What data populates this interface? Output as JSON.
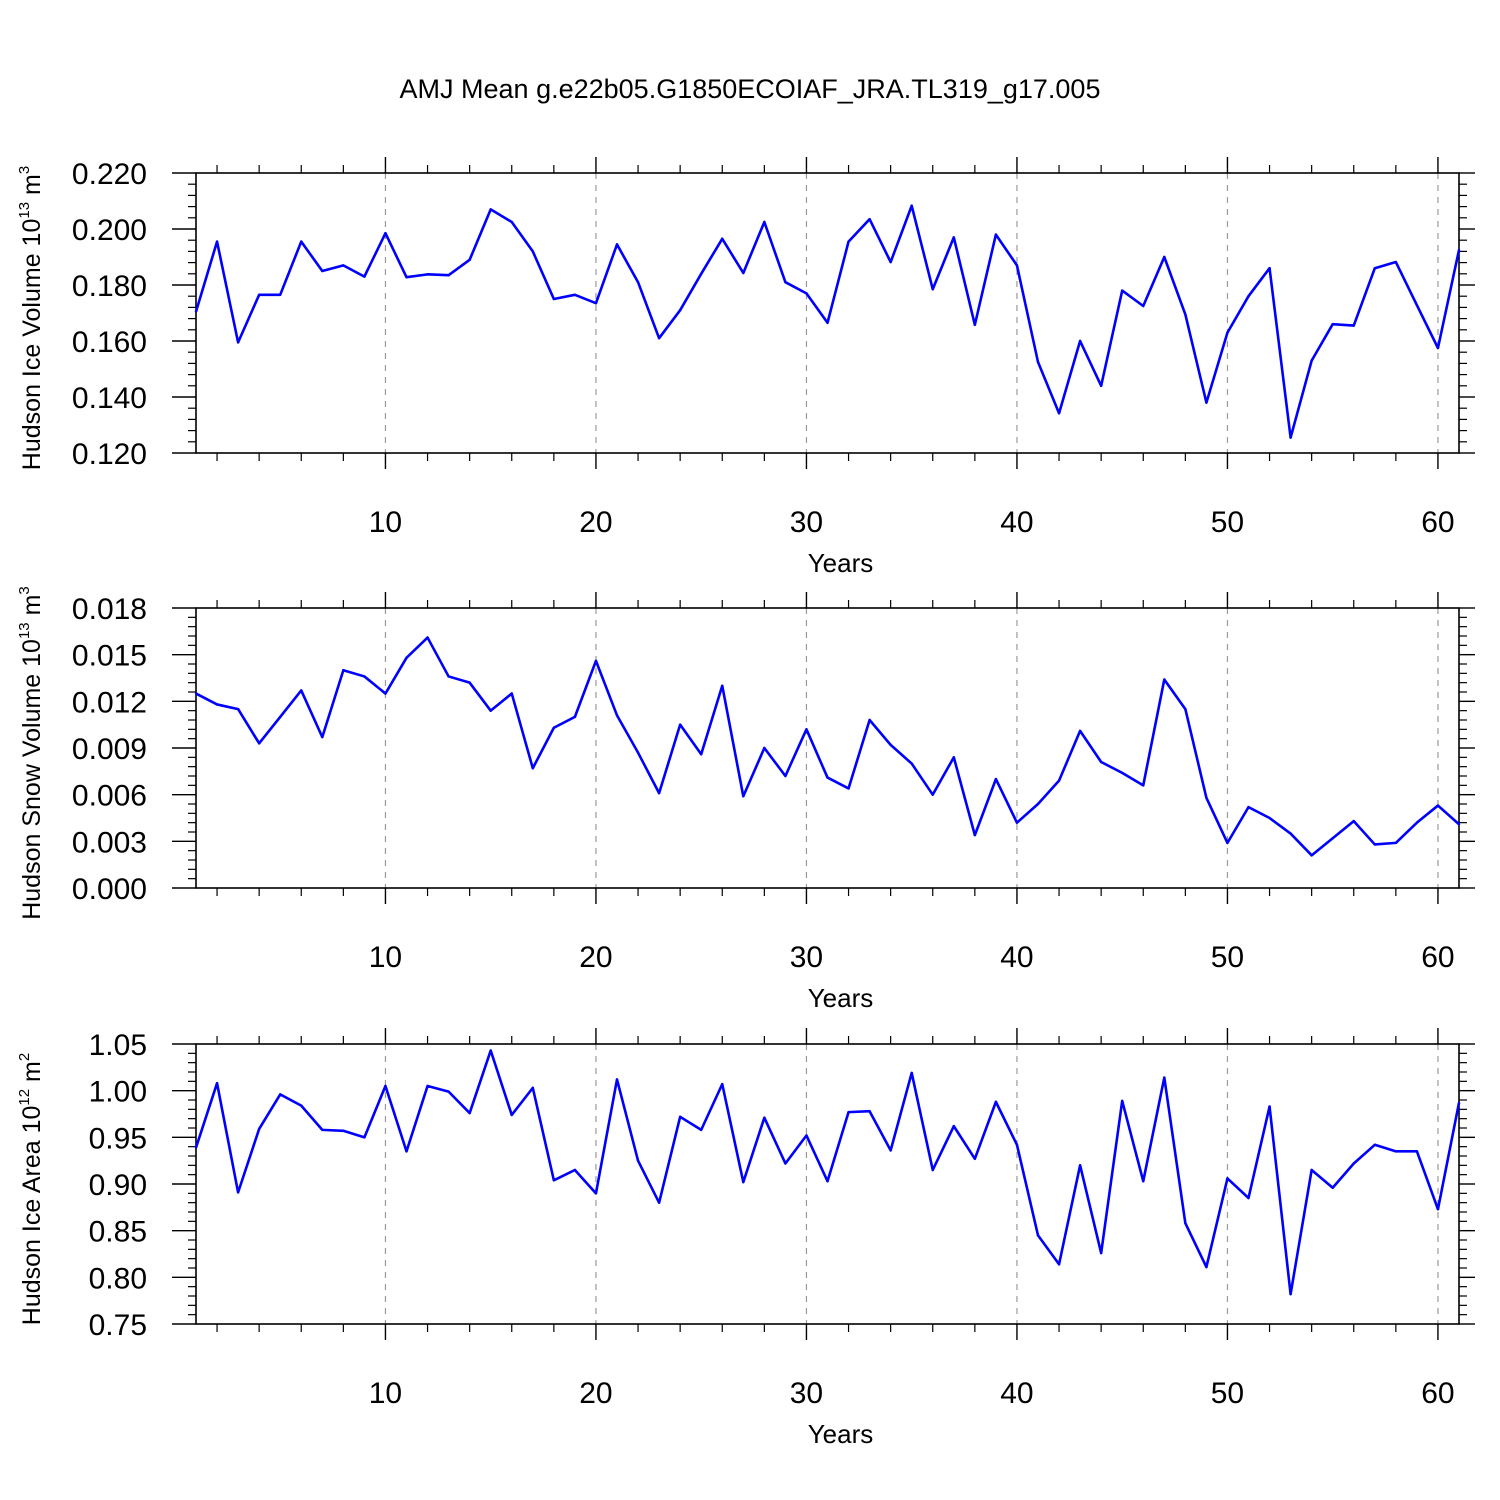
{
  "title": "AMJ Mean g.e22b05.G1850ECOIAF_JRA.TL319_g17.005",
  "chart_data": [
    {
      "type": "line",
      "xlabel": "Years",
      "ylabel": "Hudson Ice Volume",
      "ylabel_mult": "10",
      "ylabel_exp": "13",
      "ylabel_unit": "m",
      "ylabel_unit_exp": "3",
      "xlim": [
        1,
        61
      ],
      "ylim": [
        0.12,
        0.22
      ],
      "xticks": [
        10,
        20,
        30,
        40,
        50,
        60
      ],
      "yticks": [
        0.12,
        0.14,
        0.16,
        0.18,
        0.2,
        0.22
      ],
      "ytick_labels": [
        "0.120",
        "0.140",
        "0.160",
        "0.180",
        "0.200",
        "0.220"
      ],
      "line_color": "#0000ff",
      "values": [
        0.1705,
        0.1955,
        0.1595,
        0.1765,
        0.1765,
        0.1955,
        0.185,
        0.187,
        0.183,
        0.1985,
        0.1828,
        0.1838,
        0.1835,
        0.189,
        0.207,
        0.2025,
        0.192,
        0.175,
        0.1765,
        0.1735,
        0.1945,
        0.181,
        0.161,
        0.171,
        0.184,
        0.1965,
        0.1843,
        0.2025,
        0.181,
        0.177,
        0.1665,
        0.1955,
        0.2035,
        0.1882,
        0.2083,
        0.1785,
        0.197,
        0.1658,
        0.198,
        0.187,
        0.1525,
        0.1342,
        0.16,
        0.144,
        0.178,
        0.1725,
        0.19,
        0.1695,
        0.138,
        0.163,
        0.176,
        0.186,
        0.1255,
        0.153,
        0.166,
        0.1655,
        0.186,
        0.1882,
        0.1728,
        0.1575,
        0.1925
      ]
    },
    {
      "type": "line",
      "xlabel": "Years",
      "ylabel": "Hudson Snow Volume",
      "ylabel_mult": "10",
      "ylabel_exp": "13",
      "ylabel_unit": "m",
      "ylabel_unit_exp": "3",
      "xlim": [
        1,
        61
      ],
      "ylim": [
        0.0,
        0.018
      ],
      "xticks": [
        10,
        20,
        30,
        40,
        50,
        60
      ],
      "yticks": [
        0.0,
        0.003,
        0.006,
        0.009,
        0.012,
        0.015,
        0.018
      ],
      "ytick_labels": [
        "0.000",
        "0.003",
        "0.006",
        "0.009",
        "0.012",
        "0.015",
        "0.018"
      ],
      "line_color": "#0000ff",
      "values": [
        0.0125,
        0.0118,
        0.0115,
        0.0093,
        0.011,
        0.0127,
        0.0097,
        0.014,
        0.0136,
        0.0125,
        0.0148,
        0.0161,
        0.0136,
        0.0132,
        0.0114,
        0.0125,
        0.0077,
        0.0103,
        0.011,
        0.0146,
        0.0111,
        0.0087,
        0.0061,
        0.0105,
        0.0086,
        0.013,
        0.0059,
        0.009,
        0.0072,
        0.0102,
        0.0071,
        0.0064,
        0.0108,
        0.0092,
        0.008,
        0.006,
        0.0084,
        0.0034,
        0.007,
        0.0042,
        0.0054,
        0.0069,
        0.0101,
        0.0081,
        0.0074,
        0.0066,
        0.0134,
        0.0115,
        0.0058,
        0.0029,
        0.0052,
        0.0045,
        0.0035,
        0.0021,
        0.0032,
        0.0043,
        0.0028,
        0.0029,
        0.0042,
        0.0053,
        0.0041
      ]
    },
    {
      "type": "line",
      "xlabel": "Years",
      "ylabel": "Hudson Ice Area",
      "ylabel_mult": "10",
      "ylabel_exp": "12",
      "ylabel_unit": "m",
      "ylabel_unit_exp": "2",
      "xlim": [
        1,
        61
      ],
      "ylim": [
        0.75,
        1.05
      ],
      "xticks": [
        10,
        20,
        30,
        40,
        50,
        60
      ],
      "yticks": [
        0.75,
        0.8,
        0.85,
        0.9,
        0.95,
        1.0,
        1.05
      ],
      "ytick_labels": [
        "0.75",
        "0.80",
        "0.85",
        "0.90",
        "0.95",
        "1.00",
        "1.05"
      ],
      "line_color": "#0000ff",
      "values": [
        0.939,
        1.008,
        0.891,
        0.959,
        0.996,
        0.984,
        0.958,
        0.957,
        0.95,
        1.005,
        0.935,
        1.005,
        0.999,
        0.976,
        1.043,
        0.974,
        1.003,
        0.904,
        0.915,
        0.89,
        1.012,
        0.925,
        0.88,
        0.972,
        0.958,
        1.007,
        0.902,
        0.971,
        0.922,
        0.952,
        0.903,
        0.977,
        0.978,
        0.936,
        1.019,
        0.915,
        0.962,
        0.927,
        0.988,
        0.942,
        0.845,
        0.814,
        0.92,
        0.826,
        0.989,
        0.903,
        1.014,
        0.858,
        0.811,
        0.906,
        0.885,
        0.983,
        0.782,
        0.915,
        0.896,
        0.922,
        0.942,
        0.935,
        0.935,
        0.873,
        0.987
      ]
    }
  ]
}
